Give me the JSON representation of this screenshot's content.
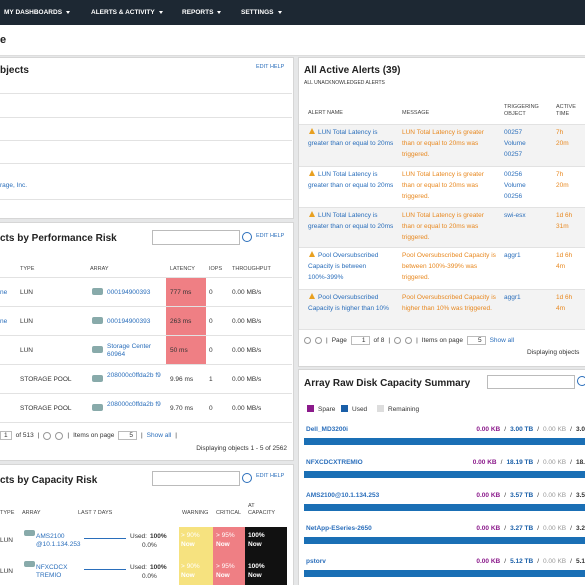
{
  "nav": {
    "items": [
      "MY DASHBOARDS",
      "ALERTS & ACTIVITY",
      "REPORTS",
      "SETTINGS"
    ]
  },
  "page_title": "e",
  "objects_panel": {
    "title": "bjects",
    "actions": "EDIT HELP",
    "last_row": "rage, Inc."
  },
  "performance_panel": {
    "title": "cts by Performance Risk",
    "actions": "EDIT HELP",
    "columns": [
      "TYPE",
      "ARRAY",
      "LATENCY",
      "IOPS",
      "THROUGHPUT"
    ],
    "rows": [
      {
        "name": "ne",
        "type": "LUN",
        "array": "000194900393",
        "latency": "777 ms",
        "iops": 0,
        "throughput": "0.00 MB/s"
      },
      {
        "name": "ne",
        "type": "LUN",
        "array": "000194900393",
        "latency": "263 ms",
        "iops": 0,
        "throughput": "0.00 MB/s"
      },
      {
        "type": "LUN",
        "array": "Storage Center 60964",
        "latency": "50 ms",
        "iops": 0,
        "throughput": "0.00 MB/s"
      },
      {
        "type": "STORAGE POOL",
        "array": "208000c0ffda2b f9",
        "latency": "9.96 ms",
        "iops": 1,
        "throughput": "0.00 MB/s"
      },
      {
        "type": "STORAGE POOL",
        "array": "208000c0ffda2b f9",
        "latency": "9.70 ms",
        "iops": 0,
        "throughput": "0.00 MB/s"
      }
    ],
    "pager": {
      "page": 1,
      "of": "of 513",
      "sep": "|",
      "items_label": "Items on page",
      "items": 5,
      "show_all": "Show all"
    },
    "displaying": "Displaying objects 1 - 5 of 2562"
  },
  "capacity_panel": {
    "title": "cts by Capacity Risk",
    "actions": "EDIT HELP",
    "columns": [
      "TYPE",
      "ARRAY",
      "LAST 7 DAYS",
      "WARNING",
      "CRITICAL",
      "AT CAPACITY"
    ],
    "rows": [
      {
        "type": "LUN",
        "array": "AMS2100 @10.1.134.253",
        "used_label": "Used:",
        "used": "100%",
        "change": "0.0%",
        "warning": "> 90%",
        "warning_when": "Now",
        "critical": "> 95%",
        "critical_when": "Now",
        "capacity": "100%",
        "capacity_when": "Now"
      },
      {
        "type": "LUN",
        "array": "NFXCDCX TREMIO",
        "used_label": "Used:",
        "used": "100%",
        "change": "0.0%",
        "warning": "> 90%",
        "warning_when": "Now",
        "critical": "> 95%",
        "critical_when": "Now",
        "capacity": "100%",
        "capacity_when": "Now"
      }
    ]
  },
  "alerts_panel": {
    "title": "All Active Alerts (39)",
    "subtitle": "ALL UNACKNOWLEDGED ALERTS",
    "columns": [
      "ALERT NAME",
      "MESSAGE",
      "TRIGGERING OBJECT",
      "ACTIVE TIME"
    ],
    "rows": [
      {
        "name": "LUN Total Latency is greater than or equal to 20ms",
        "message": "LUN Total Latency is greater than or equal to 20ms was triggered.",
        "object": "00257 Volume 00257",
        "time": "7h 20m"
      },
      {
        "name": "LUN Total Latency is greater than or equal to 20ms",
        "message": "LUN Total Latency is greater than or equal to 20ms was triggered.",
        "object": "00256 Volume 00256",
        "time": "7h 20m"
      },
      {
        "name": "LUN Total Latency is greater than or equal to 20ms",
        "message": "LUN Total Latency is greater than or equal to 20ms was triggered.",
        "object": "swi-esx",
        "time": "1d 6h 31m"
      },
      {
        "name": "Pool Oversubscribed Capacity is between 100%-399%",
        "message": "Pool Oversubscribed Capacity is between 100%-399% was triggered.",
        "object": "aggr1",
        "time": "1d 6h 4m"
      },
      {
        "name": "Pool Oversubscribed Capacity is higher than 10%",
        "message": "Pool Oversubscribed Capacity is higher than 10% was triggered.",
        "object": "aggr1",
        "time": "1d 6h 4m"
      }
    ],
    "pager": {
      "page_label": "Page",
      "page": 1,
      "of": "of 8",
      "sep": "|",
      "items_label": "Items on page",
      "items": 5,
      "show_all": "Show all"
    },
    "displaying": "Displaying objects"
  },
  "disk_panel": {
    "title": "Array Raw Disk Capacity Summary",
    "legend": [
      "Spare",
      "Used",
      "Remaining"
    ],
    "sep": "/",
    "rows": [
      {
        "name": "Dell_MD3200i",
        "spare": "0.00 KB",
        "used": "3.00 TB",
        "remaining": "0.00 KB",
        "total": "3.0"
      },
      {
        "name": "NFXCDCXTREMIO",
        "spare": "0.00 KB",
        "used": "18.19 TB",
        "remaining": "0.00 KB",
        "total": "18."
      },
      {
        "name": "AMS2100@10.1.134.253",
        "spare": "0.00 KB",
        "used": "3.57 TB",
        "remaining": "0.00 KB",
        "total": "3.5"
      },
      {
        "name": "NetApp-ESeries-2650",
        "spare": "0.00 KB",
        "used": "3.27 TB",
        "remaining": "0.00 KB",
        "total": "3.2"
      },
      {
        "name": "pstorv",
        "spare": "0.00 KB",
        "used": "5.12 TB",
        "remaining": "0.00 KB",
        "total": "5.1"
      }
    ]
  }
}
